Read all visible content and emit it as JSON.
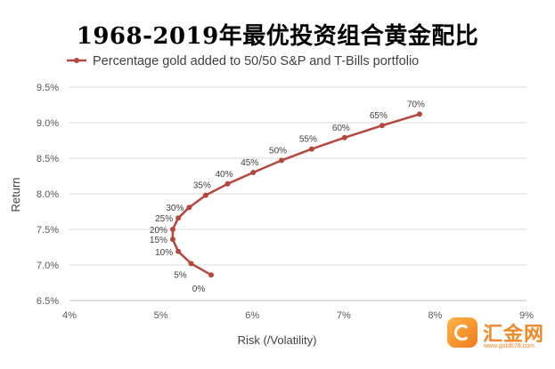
{
  "chart_data": {
    "type": "line",
    "title": "1968-2019年最优投资组合黄金配比",
    "xlabel": "Risk (/Volatility)",
    "ylabel": "Return",
    "xlim": [
      4,
      9
    ],
    "ylim": [
      6.5,
      9.5
    ],
    "x_ticks": [
      "4%",
      "5%",
      "6%",
      "7%",
      "8%",
      "9%"
    ],
    "y_ticks": [
      "6.5%",
      "7.0%",
      "7.5%",
      "8.0%",
      "8.5%",
      "9.0%",
      "9.5%"
    ],
    "grid": "horizontal",
    "legend_position": "top",
    "series": [
      {
        "name": "Percentage gold added to 50/50 S&P and T-Bills portfolio",
        "color": "#b5473d",
        "points": [
          {
            "label": "0%",
            "x": 5.55,
            "y": 6.86
          },
          {
            "label": "5%",
            "x": 5.33,
            "y": 7.02
          },
          {
            "label": "10%",
            "x": 5.19,
            "y": 7.19
          },
          {
            "label": "15%",
            "x": 5.13,
            "y": 7.36
          },
          {
            "label": "20%",
            "x": 5.13,
            "y": 7.5
          },
          {
            "label": "25%",
            "x": 5.19,
            "y": 7.66
          },
          {
            "label": "30%",
            "x": 5.31,
            "y": 7.81
          },
          {
            "label": "35%",
            "x": 5.49,
            "y": 7.98
          },
          {
            "label": "40%",
            "x": 5.73,
            "y": 8.14
          },
          {
            "label": "45%",
            "x": 6.01,
            "y": 8.3
          },
          {
            "label": "50%",
            "x": 6.32,
            "y": 8.47
          },
          {
            "label": "55%",
            "x": 6.65,
            "y": 8.63
          },
          {
            "label": "60%",
            "x": 7.01,
            "y": 8.79
          },
          {
            "label": "65%",
            "x": 7.42,
            "y": 8.96
          },
          {
            "label": "70%",
            "x": 7.83,
            "y": 9.12
          }
        ]
      }
    ]
  },
  "watermark": {
    "icon": "gold-logo-icon",
    "text": "汇金网",
    "url": "www.gold678.com"
  }
}
